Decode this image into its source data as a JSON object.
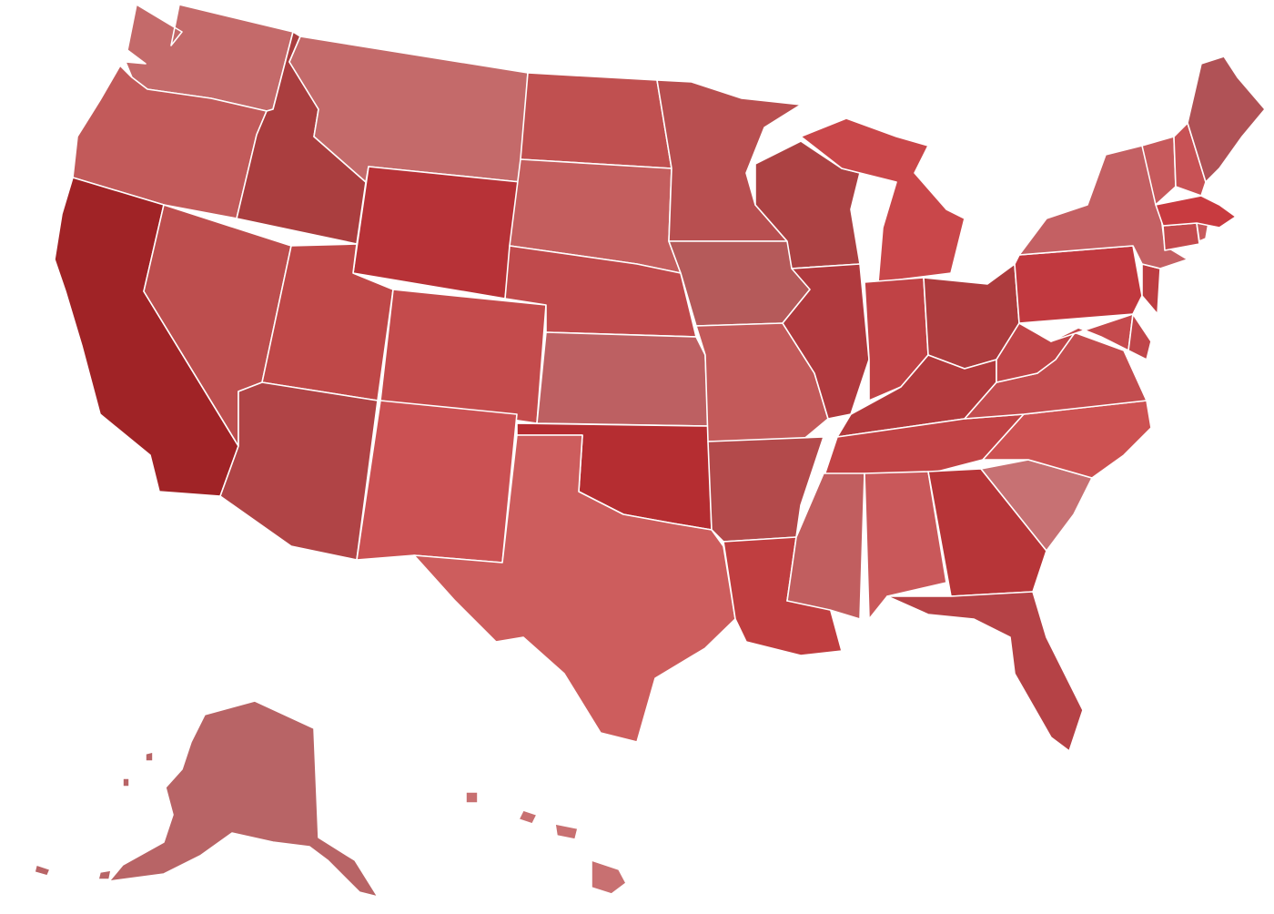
{
  "map": {
    "type": "choropleth",
    "region": "United States",
    "color_scale": {
      "low": "#d97070",
      "high": "#a01c22"
    },
    "states": {
      "WA": {
        "color": "#c46a6a"
      },
      "OR": {
        "color": "#c25a5a"
      },
      "CA": {
        "color": "#a02326"
      },
      "ID": {
        "color": "#aa3e3f"
      },
      "NV": {
        "color": "#bd4e4e"
      },
      "MT": {
        "color": "#c46a6a"
      },
      "WY": {
        "color": "#b73237"
      },
      "UT": {
        "color": "#bf4848"
      },
      "AZ": {
        "color": "#b04446"
      },
      "CO": {
        "color": "#c44b4c"
      },
      "NM": {
        "color": "#cb5153"
      },
      "ND": {
        "color": "#c05050"
      },
      "SD": {
        "color": "#c45e5e"
      },
      "NE": {
        "color": "#c04a4c"
      },
      "KS": {
        "color": "#bd6062"
      },
      "OK": {
        "color": "#b52d31"
      },
      "TX": {
        "color": "#cd5d5d"
      },
      "MN": {
        "color": "#b84f50"
      },
      "IA": {
        "color": "#b55a5a"
      },
      "MO": {
        "color": "#c35a5a"
      },
      "AR": {
        "color": "#b34a4b"
      },
      "LA": {
        "color": "#c03e40"
      },
      "WI": {
        "color": "#ac4243"
      },
      "IL": {
        "color": "#b03a3e"
      },
      "MI": {
        "color": "#c9474a"
      },
      "IN": {
        "color": "#c04245"
      },
      "OH": {
        "color": "#ad3c3e"
      },
      "KY": {
        "color": "#b23a3d"
      },
      "TN": {
        "color": "#c14345"
      },
      "MS": {
        "color": "#c15e5f"
      },
      "AL": {
        "color": "#c9585a"
      },
      "GA": {
        "color": "#b73538"
      },
      "FL": {
        "color": "#b54246"
      },
      "SC": {
        "color": "#c77173"
      },
      "NC": {
        "color": "#cd5252"
      },
      "VA": {
        "color": "#c34d4f"
      },
      "WV": {
        "color": "#c04548"
      },
      "PA": {
        "color": "#c1393f"
      },
      "NY": {
        "color": "#c46063"
      },
      "MD": {
        "color": "#c54a4d"
      },
      "DE": {
        "color": "#c0464a"
      },
      "NJ": {
        "color": "#bd3e42"
      },
      "CT": {
        "color": "#c44a4d"
      },
      "RI": {
        "color": "#c85a5c"
      },
      "MA": {
        "color": "#c83b40"
      },
      "VT": {
        "color": "#c75a5c"
      },
      "NH": {
        "color": "#c85255"
      },
      "ME": {
        "color": "#b05256"
      },
      "AK": {
        "color": "#b86466"
      },
      "HI": {
        "color": "#c87071"
      }
    }
  }
}
